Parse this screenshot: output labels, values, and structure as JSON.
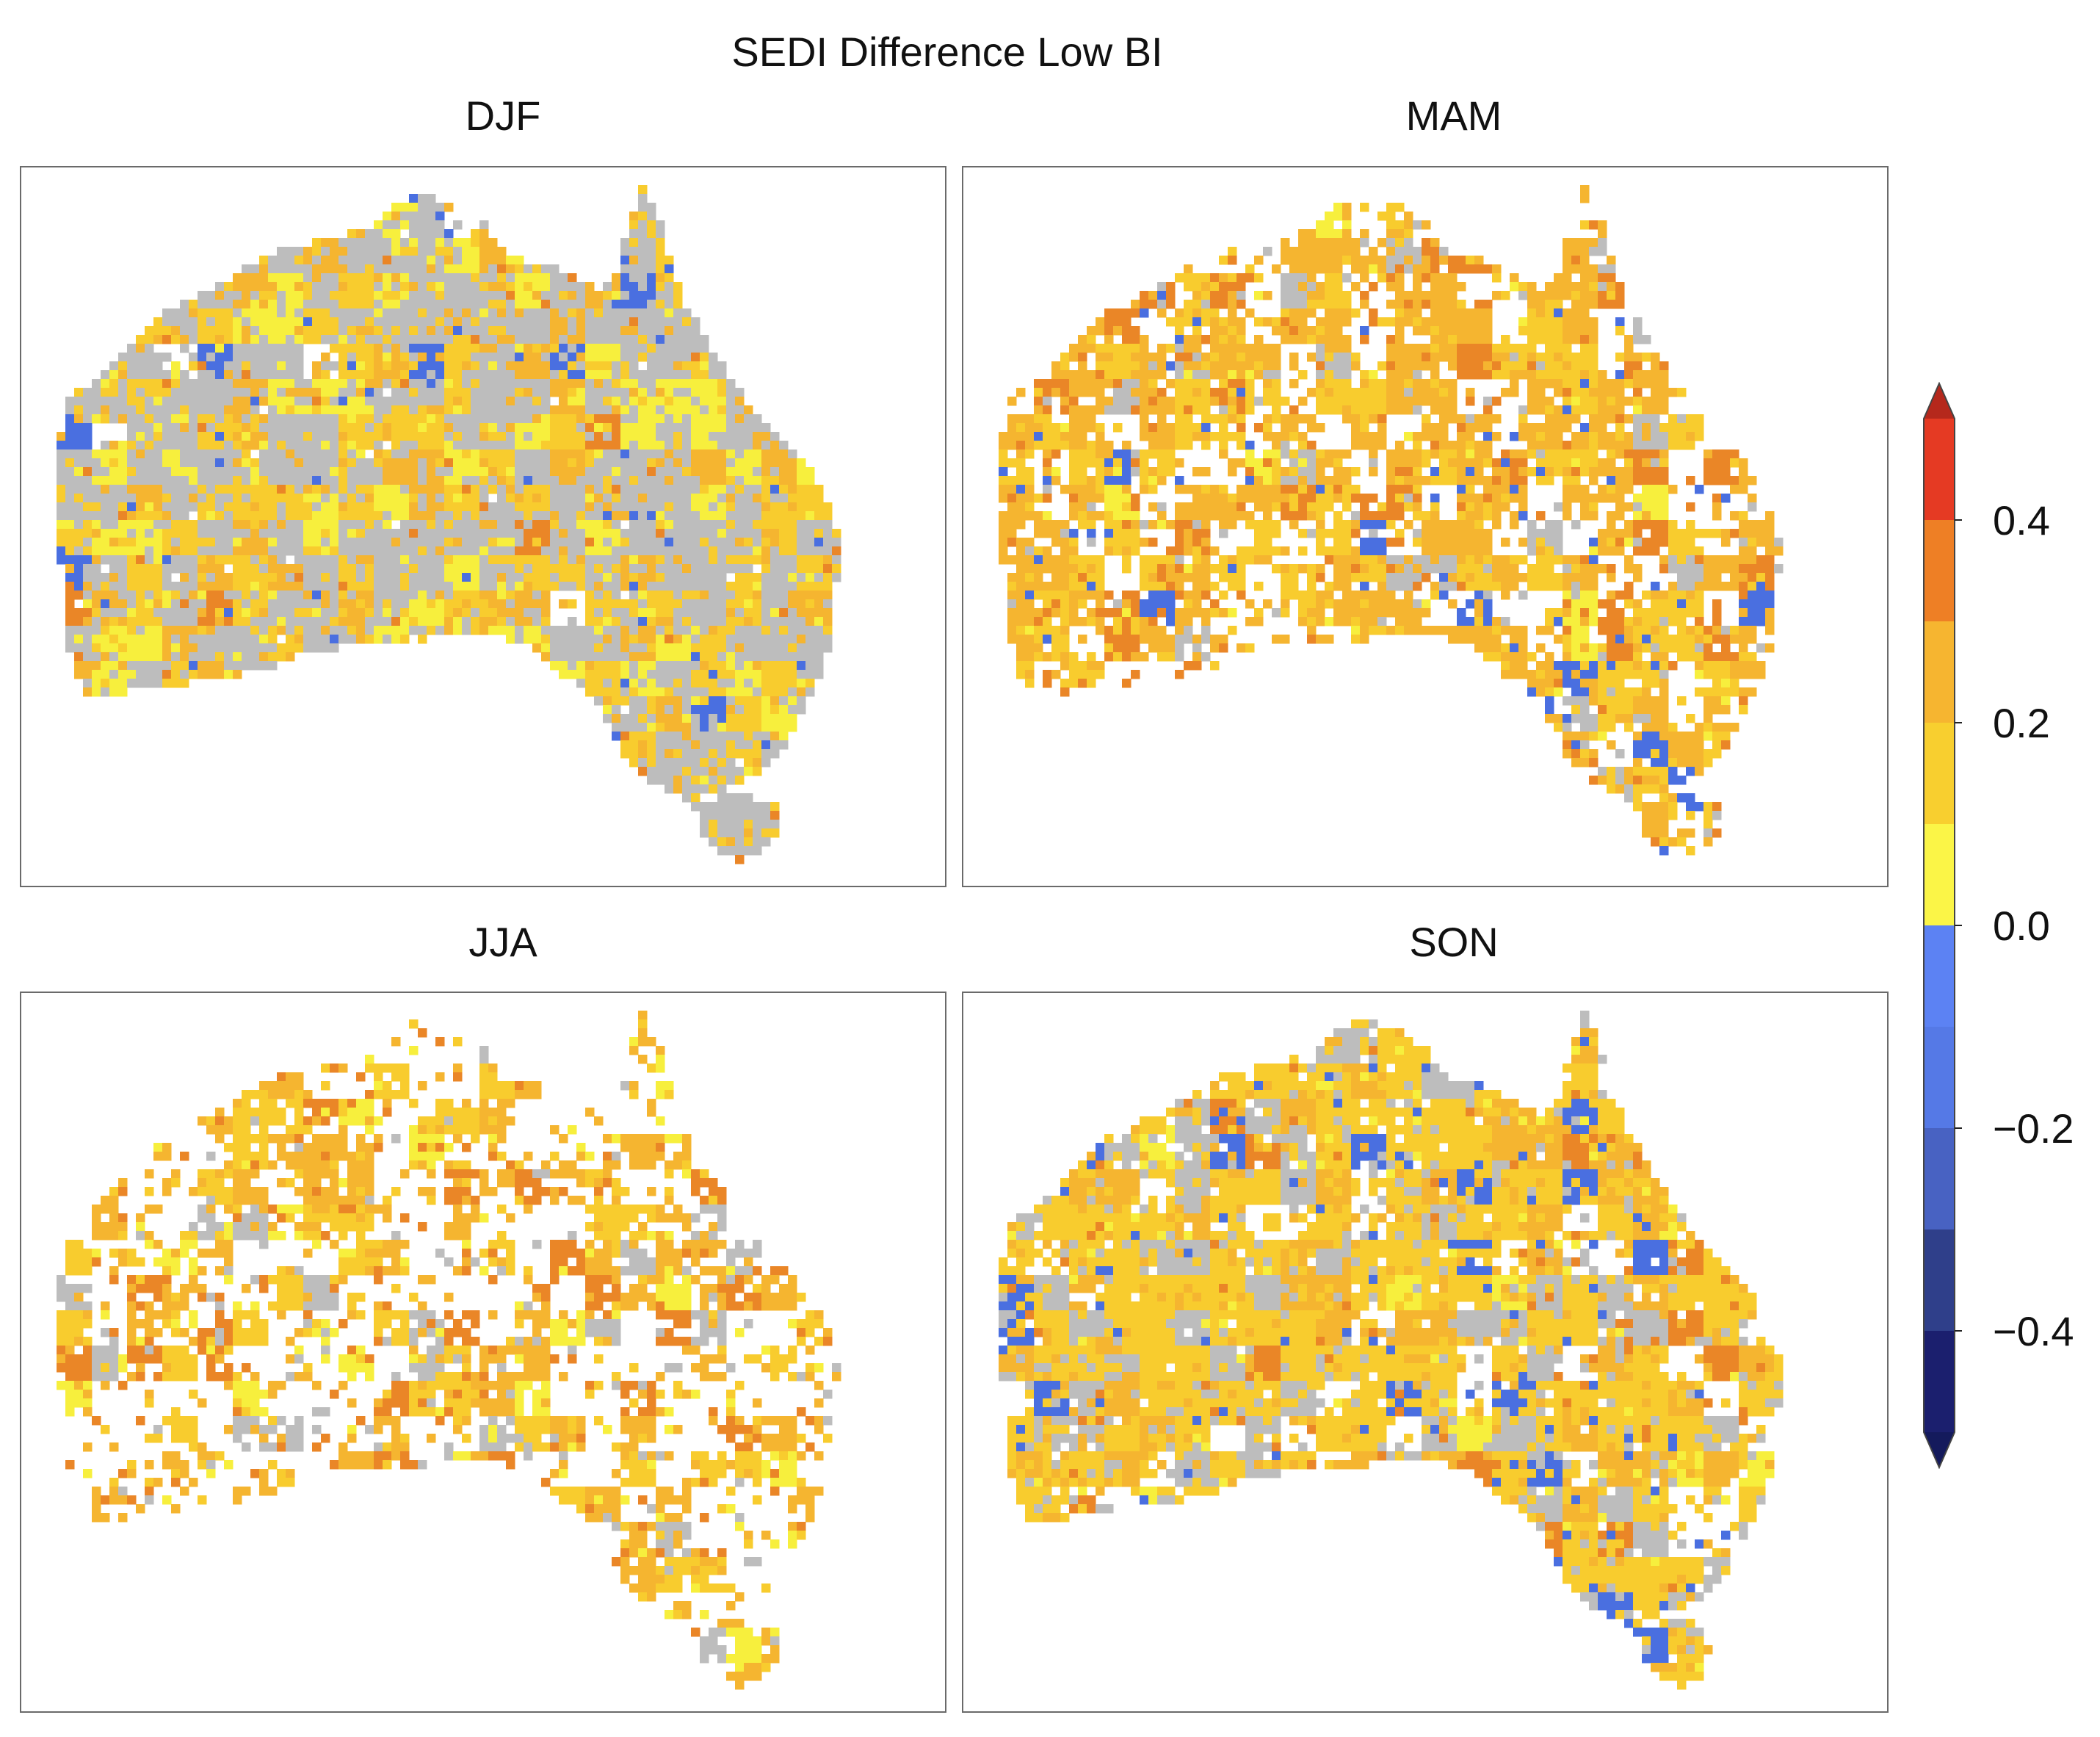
{
  "figure": {
    "title": "SEDI Difference Low BI"
  },
  "panels": [
    {
      "label": "DJF",
      "palette": {
        "grey": 0.46,
        "light_yellow": 0.1,
        "yellow": 0.22,
        "gold": 0.15,
        "orange": 0.02,
        "blue": 0.03,
        "empty": 0.02
      }
    },
    {
      "label": "MAM",
      "palette": {
        "grey": 0.06,
        "light_yellow": 0.02,
        "yellow": 0.2,
        "gold": 0.32,
        "orange": 0.1,
        "blue": 0.05,
        "empty": 0.25
      }
    },
    {
      "label": "JJA",
      "palette": {
        "grey": 0.07,
        "light_yellow": 0.05,
        "yellow": 0.12,
        "gold": 0.2,
        "orange": 0.08,
        "blue": 0.0,
        "empty": 0.48
      }
    },
    {
      "label": "SON",
      "palette": {
        "grey": 0.2,
        "light_yellow": 0.04,
        "yellow": 0.38,
        "gold": 0.18,
        "orange": 0.04,
        "blue": 0.06,
        "empty": 0.1
      }
    }
  ],
  "colorbar": {
    "ticks": [
      "0.4",
      "0.2",
      "0.0",
      "−0.2",
      "−0.4"
    ],
    "tick_values": [
      0.4,
      0.2,
      0.0,
      -0.2,
      -0.4
    ],
    "range": [
      -0.5,
      0.5
    ],
    "extend": "both",
    "levels": [
      {
        "from": 0.4,
        "to": 0.5,
        "color": "#e53a23"
      },
      {
        "from": 0.3,
        "to": 0.4,
        "color": "#ee7f25"
      },
      {
        "from": 0.2,
        "to": 0.3,
        "color": "#f6b530"
      },
      {
        "from": 0.1,
        "to": 0.2,
        "color": "#f8cf2f"
      },
      {
        "from": 0.0,
        "to": 0.1,
        "color": "#fbf547"
      },
      {
        "from": -0.1,
        "to": 0.0,
        "color": "#5c82f3"
      },
      {
        "from": -0.2,
        "to": -0.1,
        "color": "#5579e6"
      },
      {
        "from": -0.3,
        "to": -0.2,
        "color": "#4862c2"
      },
      {
        "from": -0.4,
        "to": -0.3,
        "color": "#2f3f8a"
      },
      {
        "from": -0.5,
        "to": -0.4,
        "color": "#1b1f6e"
      }
    ],
    "over_color": "#b5281c",
    "under_color": "#141a5c"
  },
  "colors": {
    "grey": "#bdbdbd",
    "light_yellow": "#f7ef3d",
    "yellow": "#f8cc2e",
    "gold": "#f5b530",
    "orange": "#ea8627",
    "blue": "#4a6fe0",
    "empty": "#ffffff"
  }
}
